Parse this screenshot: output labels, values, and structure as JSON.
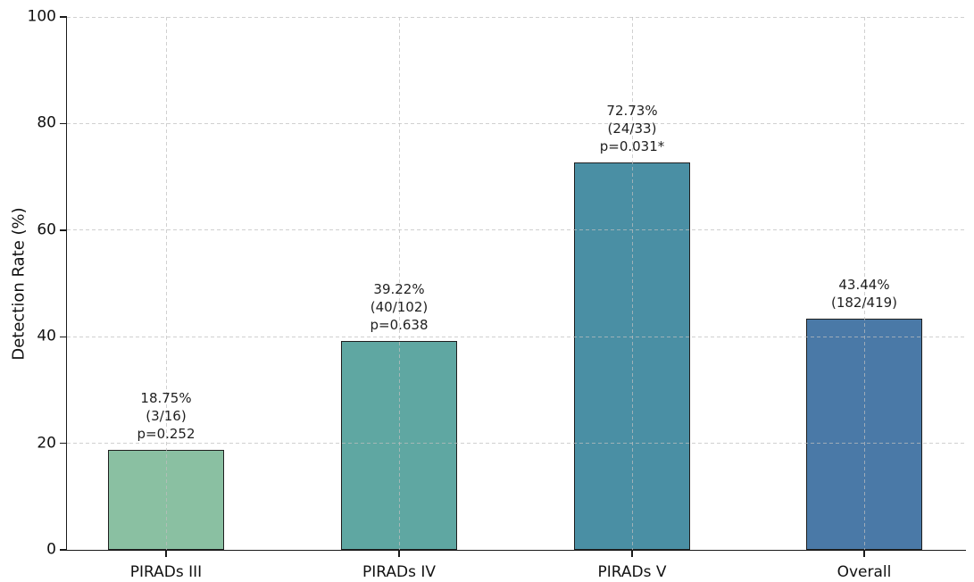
{
  "chart_data": {
    "type": "bar",
    "title": "",
    "xlabel": "",
    "ylabel": "Detection Rate (%)",
    "ylim": [
      0,
      100
    ],
    "yticks": [
      0,
      20,
      40,
      60,
      80,
      100
    ],
    "grid": {
      "style": "dashed",
      "color": "#d6d6d6",
      "drawn_over_bars": true
    },
    "legend": "none",
    "categories": [
      "PIRADs III",
      "PIRADs IV",
      "PIRADs V",
      "Overall"
    ],
    "series": [
      {
        "name": "Detection Rate (%)",
        "values": [
          18.75,
          39.22,
          72.73,
          43.44
        ]
      }
    ],
    "bars": [
      {
        "category": "PIRADs III",
        "value_pct": 18.75,
        "fraction": "3/16",
        "p_value": "p=0.252",
        "color": "#8ac0a2",
        "label_lines": [
          "18.75%",
          "(3/16)",
          "p=0.252"
        ]
      },
      {
        "category": "PIRADs IV",
        "value_pct": 39.22,
        "fraction": "40/102",
        "p_value": "p=0.638",
        "color": "#5fa7a2",
        "label_lines": [
          "39.22%",
          "(40/102)",
          "p=0.638"
        ]
      },
      {
        "category": "PIRADs V",
        "value_pct": 72.73,
        "fraction": "24/33",
        "p_value": "p=0.031*",
        "color": "#4a8fa4",
        "label_lines": [
          "72.73%",
          "(24/33)",
          "p=0.031*"
        ]
      },
      {
        "category": "Overall",
        "value_pct": 43.44,
        "fraction": "182/419",
        "p_value": "",
        "color": "#4a79a7",
        "label_lines": [
          "43.44%",
          "(182/419)"
        ]
      }
    ],
    "bar_edge_color": "#1f1f1f",
    "axis_color": "#1a1a1a",
    "text_color": "#111111",
    "background": "#ffffff"
  }
}
